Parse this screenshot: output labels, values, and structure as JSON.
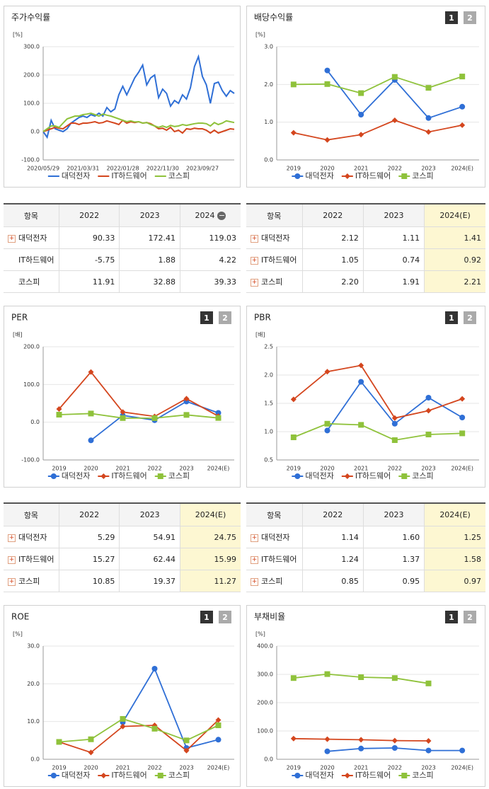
{
  "chart_data": [
    {
      "type": "line",
      "title": "주가수익률",
      "y_unit": "[%]",
      "markers": false,
      "categories": [
        "2020/05/29",
        null,
        null,
        null,
        null,
        null,
        null,
        null,
        null,
        null,
        "2021/03/31",
        null,
        null,
        null,
        null,
        null,
        null,
        null,
        null,
        null,
        "2022/01/28",
        null,
        null,
        null,
        null,
        null,
        null,
        null,
        null,
        null,
        "2022/11/30",
        null,
        null,
        null,
        null,
        null,
        null,
        null,
        null,
        null,
        "2023/09/27",
        null,
        null,
        null,
        null,
        null,
        null,
        null,
        null
      ],
      "series": [
        {
          "name": "대덕전자",
          "color": "#2f6fd6",
          "values": [
            0,
            -20,
            40,
            10,
            5,
            0,
            10,
            30,
            40,
            50,
            55,
            50,
            60,
            55,
            65,
            55,
            85,
            70,
            80,
            130,
            160,
            130,
            160,
            190,
            210,
            235,
            165,
            190,
            200,
            120,
            150,
            135,
            90,
            110,
            100,
            130,
            115,
            155,
            230,
            265,
            195,
            165,
            100,
            170,
            175,
            145,
            125,
            145,
            135
          ]
        },
        {
          "name": "IT하드웨어",
          "color": "#d4461e",
          "values": [
            0,
            5,
            10,
            15,
            12,
            10,
            20,
            30,
            30,
            25,
            30,
            30,
            32,
            35,
            30,
            32,
            38,
            34,
            30,
            25,
            40,
            30,
            35,
            32,
            35,
            30,
            32,
            28,
            20,
            10,
            12,
            5,
            15,
            0,
            5,
            -5,
            10,
            8,
            12,
            10,
            10,
            5,
            -5,
            5,
            -5,
            0,
            5,
            10,
            8
          ]
        },
        {
          "name": "코스피",
          "color": "#8fc23b",
          "values": [
            0,
            10,
            20,
            20,
            15,
            30,
            45,
            50,
            55,
            55,
            60,
            62,
            65,
            60,
            55,
            62,
            58,
            55,
            50,
            45,
            40,
            35,
            38,
            34,
            35,
            30,
            32,
            25,
            20,
            15,
            20,
            15,
            22,
            18,
            20,
            25,
            22,
            25,
            28,
            30,
            30,
            28,
            20,
            32,
            25,
            30,
            38,
            35,
            32
          ]
        }
      ],
      "ylim": [
        -100,
        300
      ],
      "yticks": [
        {
          "value": -100,
          "label": "-100.0"
        },
        {
          "value": 0,
          "label": "0.0"
        },
        {
          "value": 100,
          "label": "100.0"
        },
        {
          "value": 200,
          "label": "200.0"
        },
        {
          "value": 300,
          "label": "300.0"
        }
      ],
      "grid": true
    },
    {
      "type": "line",
      "title": "배당수익률",
      "pager": [
        "1",
        "2"
      ],
      "y_unit": "[%]",
      "markers": true,
      "categories": [
        "2019",
        "2020",
        "2021",
        "2022",
        "2023",
        "2024(E)"
      ],
      "series": [
        {
          "name": "대덕전자",
          "color": "#2f6fd6",
          "marker": "circle",
          "values": [
            null,
            2.37,
            1.2,
            2.12,
            1.11,
            1.41
          ]
        },
        {
          "name": "IT하드웨어",
          "color": "#d4461e",
          "marker": "diamond",
          "values": [
            0.72,
            0.53,
            0.67,
            1.05,
            0.74,
            0.92
          ]
        },
        {
          "name": "코스피",
          "color": "#8fc23b",
          "marker": "square",
          "values": [
            2.0,
            2.01,
            1.77,
            2.2,
            1.91,
            2.21
          ]
        }
      ],
      "ylim": [
        0,
        3
      ],
      "yticks": [
        {
          "value": 0,
          "label": "0.0"
        },
        {
          "value": 1,
          "label": "1.0"
        },
        {
          "value": 2,
          "label": "2.0"
        },
        {
          "value": 3,
          "label": "3.0"
        }
      ],
      "grid": true
    },
    {
      "type": "line",
      "title": "PER",
      "pager": [
        "1",
        "2"
      ],
      "y_unit": "[배]",
      "markers": true,
      "categories": [
        "2019",
        "2020",
        "2021",
        "2022",
        "2023",
        "2024(E)"
      ],
      "series": [
        {
          "name": "대덕전자",
          "color": "#2f6fd6",
          "marker": "circle",
          "values": [
            null,
            -48,
            18,
            5.29,
            54.91,
            24.75
          ]
        },
        {
          "name": "IT하드웨어",
          "color": "#d4461e",
          "marker": "diamond",
          "values": [
            35,
            133,
            27,
            15.27,
            62.44,
            15.99
          ]
        },
        {
          "name": "코스피",
          "color": "#8fc23b",
          "marker": "square",
          "values": [
            20,
            23,
            11,
            10.85,
            19.37,
            11.27
          ]
        }
      ],
      "ylim": [
        -100,
        200
      ],
      "yticks": [
        {
          "value": -100,
          "label": "-100.0"
        },
        {
          "value": 0,
          "label": "0.0"
        },
        {
          "value": 100,
          "label": "100.0"
        },
        {
          "value": 200,
          "label": "200.0"
        }
      ],
      "grid": true
    },
    {
      "type": "line",
      "title": "PBR",
      "pager": [
        "1",
        "2"
      ],
      "y_unit": "[배]",
      "markers": true,
      "categories": [
        "2019",
        "2020",
        "2021",
        "2022",
        "2023",
        "2024(E)"
      ],
      "series": [
        {
          "name": "대덕전자",
          "color": "#2f6fd6",
          "marker": "circle",
          "values": [
            null,
            1.02,
            1.88,
            1.14,
            1.6,
            1.25
          ]
        },
        {
          "name": "IT하드웨어",
          "color": "#d4461e",
          "marker": "diamond",
          "values": [
            1.57,
            2.06,
            2.17,
            1.24,
            1.37,
            1.58
          ]
        },
        {
          "name": "코스피",
          "color": "#8fc23b",
          "marker": "square",
          "values": [
            0.9,
            1.14,
            1.12,
            0.85,
            0.95,
            0.97
          ]
        }
      ],
      "ylim": [
        0.5,
        2.5
      ],
      "yticks": [
        0.5,
        {
          "value": 1,
          "label": "1.0"
        },
        1.5,
        {
          "value": 2,
          "label": "2.0"
        },
        2.5
      ],
      "grid": true
    },
    {
      "type": "line",
      "title": "ROE",
      "pager": [
        "1",
        "2"
      ],
      "y_unit": "[%]",
      "markers": true,
      "categories": [
        "2019",
        "2020",
        "2021",
        "2022",
        "2023",
        "2024(E)"
      ],
      "series": [
        {
          "name": "대덕전자",
          "color": "#2f6fd6",
          "marker": "circle",
          "values": [
            null,
            null,
            9.8,
            24,
            3,
            5.2
          ]
        },
        {
          "name": "IT하드웨어",
          "color": "#d4461e",
          "marker": "diamond",
          "values": [
            4.6,
            1.8,
            8.7,
            9,
            2.3,
            10.4
          ]
        },
        {
          "name": "코스피",
          "color": "#8fc23b",
          "marker": "square",
          "values": [
            4.6,
            5.3,
            10.7,
            8.1,
            5,
            9
          ]
        }
      ],
      "ylim": [
        0,
        30
      ],
      "yticks": [
        {
          "value": 0,
          "label": "0.0"
        },
        {
          "value": 10,
          "label": "10.0"
        },
        {
          "value": 20,
          "label": "20.0"
        },
        {
          "value": 30,
          "label": "30.0"
        }
      ],
      "grid": true
    },
    {
      "type": "line",
      "title": "부채비율",
      "pager": [
        "1",
        "2"
      ],
      "y_unit": "[%]",
      "markers": true,
      "categories": [
        "2019",
        "2020",
        "2021",
        "2022",
        "2023",
        "2024(E)"
      ],
      "series": [
        {
          "name": "대덕전자",
          "color": "#2f6fd6",
          "marker": "circle",
          "values": [
            null,
            28,
            38,
            40,
            31,
            31
          ]
        },
        {
          "name": "IT하드웨어",
          "color": "#d4461e",
          "marker": "diamond",
          "values": [
            73,
            71,
            69,
            66,
            65,
            null
          ]
        },
        {
          "name": "코스피",
          "color": "#8fc23b",
          "marker": "square",
          "values": [
            287,
            301,
            290,
            287,
            268,
            null
          ]
        }
      ],
      "ylim": [
        0,
        400
      ],
      "yticks": [
        {
          "value": 0,
          "label": "0.0"
        },
        {
          "value": 100,
          "label": "100.0"
        },
        {
          "value": 200,
          "label": "200.0"
        },
        {
          "value": 300,
          "label": "300.0"
        },
        {
          "value": 400,
          "label": "400.0"
        }
      ],
      "grid": true
    }
  ],
  "tables": [
    {
      "columns": [
        "항목",
        "2022",
        "2023",
        "2024"
      ],
      "header_icon": true,
      "highlight_last": false,
      "expandable": [
        true,
        false,
        false
      ],
      "rows": [
        [
          "대덕전자",
          "90.33",
          "172.41",
          "119.03"
        ],
        [
          "IT하드웨어",
          "-5.75",
          "1.88",
          "4.22"
        ],
        [
          "코스피",
          "11.91",
          "32.88",
          "39.33"
        ]
      ]
    },
    {
      "columns": [
        "항목",
        "2022",
        "2023",
        "2024(E)"
      ],
      "header_icon": false,
      "highlight_last": true,
      "expandable": [
        true,
        true,
        true
      ],
      "rows": [
        [
          "대덕전자",
          "2.12",
          "1.11",
          "1.41"
        ],
        [
          "IT하드웨어",
          "1.05",
          "0.74",
          "0.92"
        ],
        [
          "코스피",
          "2.20",
          "1.91",
          "2.21"
        ]
      ]
    },
    {
      "columns": [
        "항목",
        "2022",
        "2023",
        "2024(E)"
      ],
      "header_icon": false,
      "highlight_last": true,
      "expandable": [
        true,
        true,
        true
      ],
      "rows": [
        [
          "대덕전자",
          "5.29",
          "54.91",
          "24.75"
        ],
        [
          "IT하드웨어",
          "15.27",
          "62.44",
          "15.99"
        ],
        [
          "코스피",
          "10.85",
          "19.37",
          "11.27"
        ]
      ]
    },
    {
      "columns": [
        "항목",
        "2022",
        "2023",
        "2024(E)"
      ],
      "header_icon": false,
      "highlight_last": true,
      "expandable": [
        true,
        true,
        true
      ],
      "rows": [
        [
          "대덕전자",
          "1.14",
          "1.60",
          "1.25"
        ],
        [
          "IT하드웨어",
          "1.24",
          "1.37",
          "1.58"
        ],
        [
          "코스피",
          "0.85",
          "0.95",
          "0.97"
        ]
      ]
    }
  ]
}
